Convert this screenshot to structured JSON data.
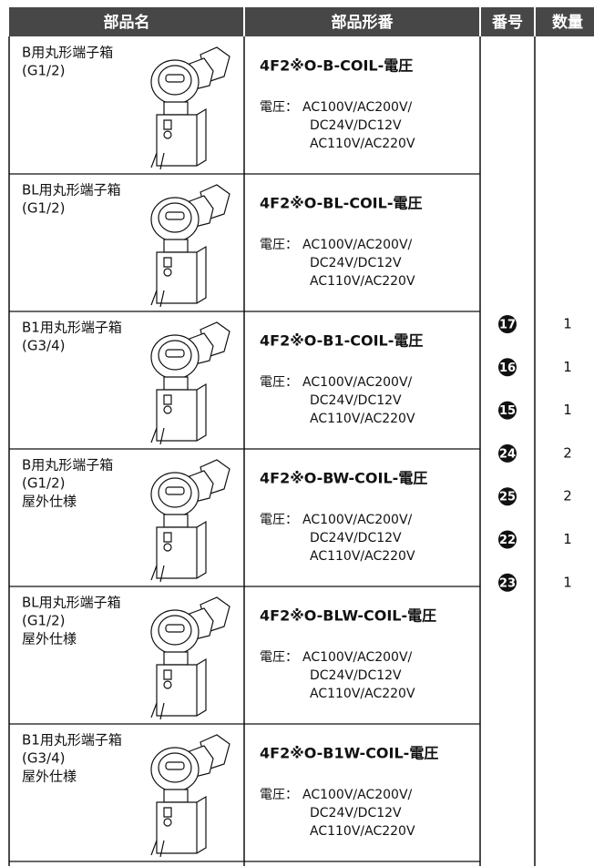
{
  "table": {
    "header": [
      "部品名",
      "部品形番",
      "番号",
      "数量"
    ],
    "rows": [
      {
        "name": [
          "B用丸形端子箱",
          "(G1/2)"
        ],
        "part_number": "4F2※O-B-COIL-電圧",
        "voltage_label": "電圧：",
        "voltage": [
          "AC100V/AC200V/",
          "DC24V/DC12V",
          "AC110V/AC220V"
        ]
      },
      {
        "name": [
          "BL用丸形端子箱",
          "(G1/2)"
        ],
        "part_number": "4F2※O-BL-COIL-電圧",
        "voltage_label": "電圧：",
        "voltage": [
          "AC100V/AC200V/",
          "DC24V/DC12V",
          "AC110V/AC220V"
        ]
      },
      {
        "name": [
          "B1用丸形端子箱",
          "(G3/4)"
        ],
        "part_number": "4F2※O-B1-COIL-電圧",
        "voltage_label": "電圧：",
        "voltage": [
          "AC100V/AC200V/",
          "DC24V/DC12V",
          "AC110V/AC220V"
        ]
      },
      {
        "name": [
          "B用丸形端子箱",
          "(G1/2)",
          "屋外仕様"
        ],
        "part_number": "4F2※O-BW-COIL-電圧",
        "voltage_label": "電圧：",
        "voltage": [
          "AC100V/AC200V/",
          "DC24V/DC12V",
          "AC110V/AC220V"
        ]
      },
      {
        "name": [
          "BL用丸形端子箱",
          "(G1/2)",
          "屋外仕様"
        ],
        "part_number": "4F2※O-BLW-COIL-電圧",
        "voltage_label": "電圧：",
        "voltage": [
          "AC100V/AC200V/",
          "DC24V/DC12V",
          "AC110V/AC220V"
        ]
      },
      {
        "name": [
          "B1用丸形端子箱",
          "(G3/4)",
          "屋外仕様"
        ],
        "part_number": "4F2※O-B1W-COIL-電圧",
        "voltage_label": "電圧：",
        "voltage": [
          "AC100V/AC200V/",
          "DC24V/DC12V",
          "AC110V/AC220V"
        ]
      }
    ],
    "items": [
      {
        "number": 17,
        "quantity": 1
      },
      {
        "number": 16,
        "quantity": 1
      },
      {
        "number": 15,
        "quantity": 1
      },
      {
        "number": 24,
        "quantity": 2
      },
      {
        "number": 25,
        "quantity": 2
      },
      {
        "number": 22,
        "quantity": 1
      },
      {
        "number": 23,
        "quantity": 1
      }
    ]
  }
}
